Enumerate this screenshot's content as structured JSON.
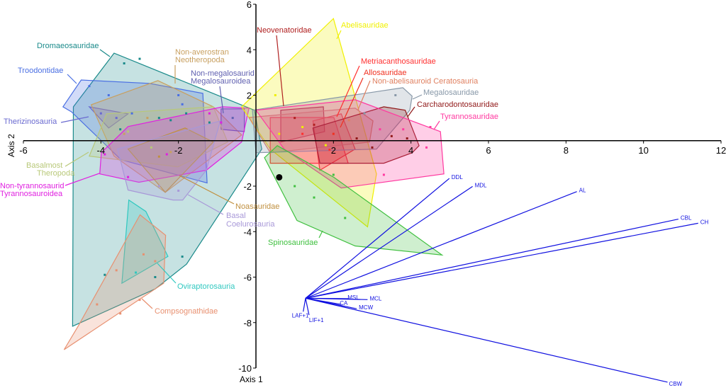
{
  "chart_data": {
    "type": "scatter",
    "xlabel": "Axis 1",
    "ylabel": "Axis 2",
    "xlim": [
      -6,
      12
    ],
    "ylim": [
      -10,
      6
    ],
    "xticks": [
      -6,
      -4,
      -2,
      2,
      4,
      6,
      8,
      10,
      12
    ],
    "yticks": [
      6,
      4,
      2,
      -2,
      -4,
      -6,
      -8,
      -10
    ],
    "grid": false,
    "legend": "none (direct labels)",
    "groups": [
      {
        "name": "Dromaeosauridae",
        "color": "#1a8a8a",
        "hull": [
          [
            -4.71,
            1.49
          ],
          [
            -3.66,
            3.85
          ],
          [
            -0.04,
            1.34
          ],
          [
            0.15,
            -0.37
          ],
          [
            -1.79,
            -5.43
          ],
          [
            -2.6,
            -6.52
          ],
          [
            -4.73,
            -8.16
          ]
        ],
        "points": [
          [
            -3.4,
            3.4
          ],
          [
            -3.0,
            3.6
          ],
          [
            -2.5,
            1.0
          ],
          [
            -1.8,
            1.2
          ],
          [
            -1.2,
            0.8
          ],
          [
            -3.5,
            0.5
          ],
          [
            -2.2,
            0.9
          ],
          [
            -2.6,
            -6.0
          ],
          [
            -3.9,
            -5.9
          ],
          [
            -1.9,
            -5.1
          ]
        ]
      },
      {
        "name": "Troodontidae",
        "color": "#4a6fe3",
        "hull": [
          [
            -4.98,
            1.49
          ],
          [
            -4.51,
            2.67
          ],
          [
            -2.75,
            2.52
          ],
          [
            -1.37,
            2.08
          ],
          [
            -1.26,
            -1.86
          ],
          [
            -3.48,
            -0.84
          ],
          [
            -4.76,
            1.27
          ]
        ],
        "points": [
          [
            -4.3,
            2.4
          ],
          [
            -3.8,
            2.0
          ],
          [
            -2.0,
            2.0
          ],
          [
            -1.9,
            1.6
          ],
          [
            -3.2,
            1.2
          ]
        ]
      },
      {
        "name": "Therizinosauria",
        "color": "#6a6ad0",
        "hull": [
          [
            -4.3,
            1.49
          ],
          [
            -3.3,
            1.18
          ],
          [
            -3.8,
            0.56
          ]
        ],
        "points": [
          [
            -4.0,
            1.2
          ],
          [
            -3.6,
            1.0
          ]
        ]
      },
      {
        "name": "Non-averostran Neotheropoda",
        "color": "#c8a060",
        "hull": [
          [
            -4.25,
            1.58
          ],
          [
            -2.53,
            2.64
          ],
          [
            -1.1,
            1.49
          ],
          [
            -0.37,
            0.25
          ],
          [
            -2.34,
            -2.27
          ],
          [
            -3.66,
            -0.68
          ]
        ],
        "points": [
          [
            -2.8,
            1.0
          ],
          [
            -3.4,
            0.3
          ],
          [
            -2.2,
            -0.5
          ]
        ]
      },
      {
        "name": "Non-megalosaurid Megalosauroidea",
        "color": "#6060b0",
        "hull": [
          [
            -0.9,
            1.4
          ],
          [
            -0.3,
            1.4
          ],
          [
            -0.3,
            0.4
          ],
          [
            -0.9,
            0.5
          ]
        ],
        "points": [
          [
            -0.6,
            1.0
          ]
        ]
      },
      {
        "name": "Basalmost Theropoda",
        "color": "#b8c878",
        "hull": [
          [
            -4.3,
            -0.68
          ],
          [
            -3.85,
            1.18
          ],
          [
            -1.1,
            1.49
          ],
          [
            -0.73,
            -0.06
          ],
          [
            -2.01,
            -1.15
          ]
        ],
        "points": [
          [
            -3.3,
            0.4
          ],
          [
            -2.7,
            -0.3
          ]
        ]
      },
      {
        "name": "Non-tyrannosaurid Tyrannosauroidea",
        "color": "#e020e0",
        "hull": [
          [
            -4.03,
            -1.46
          ],
          [
            -3.99,
            -0.53
          ],
          [
            -3.3,
            0.62
          ],
          [
            -0.86,
            1.49
          ],
          [
            -0.18,
            1.43
          ],
          [
            -0.37,
            -0.06
          ],
          [
            -1.28,
            -1.3
          ],
          [
            -3.02,
            -1.83
          ]
        ],
        "points": [
          [
            -3.9,
            -0.6
          ],
          [
            -3.3,
            -1.6
          ],
          [
            -2.3,
            -0.6
          ],
          [
            -1.2,
            1.2
          ],
          [
            -0.9,
            0.8
          ]
        ]
      },
      {
        "name": "Noasauridae",
        "color": "#c09040",
        "hull": [
          [
            -3.3,
            -0.37
          ],
          [
            -2.34,
            -2.27
          ],
          [
            -1.1,
            -0.06
          ],
          [
            -1.83,
            0.56
          ]
        ],
        "points": [
          [
            -2.5,
            -0.7
          ]
        ]
      },
      {
        "name": "Basal Coelurosauria",
        "color": "#a898d8",
        "hull": [
          [
            -3.3,
            -2.17
          ],
          [
            -2.14,
            -2.61
          ],
          [
            -1.89,
            -2.61
          ],
          [
            -1.28,
            -1.3
          ],
          [
            -0.92,
            0.87
          ],
          [
            -3.57,
            -0.37
          ]
        ],
        "points": [
          [
            -2.5,
            -2.0
          ],
          [
            -2.0,
            -2.2
          ]
        ]
      },
      {
        "name": "Oviraptorosauria",
        "color": "#30c8c0",
        "hull": [
          [
            -3.28,
            -2.61
          ],
          [
            -2.84,
            -3.11
          ],
          [
            -2.27,
            -5.09
          ],
          [
            -3.46,
            -6.27
          ]
        ],
        "points": [
          [
            -3.1,
            -5.8
          ]
        ]
      },
      {
        "name": "Compsognathidae",
        "color": "#e89070",
        "hull": [
          [
            -2.99,
            -3.26
          ],
          [
            -2.33,
            -4.16
          ],
          [
            -2.38,
            -6.27
          ],
          [
            -4.95,
            -9.19
          ],
          [
            -4.58,
            -8.14
          ]
        ],
        "points": [
          [
            -2.9,
            -5.0
          ],
          [
            -2.6,
            -5.3
          ],
          [
            -3.6,
            -5.7
          ],
          [
            -4.1,
            -7.2
          ],
          [
            -3.5,
            -7.6
          ],
          [
            -3.0,
            -7.0
          ]
        ]
      },
      {
        "name": "Abelisauridae",
        "color": "#f0f000",
        "hull": [
          [
            -0.37,
            1.49
          ],
          [
            2.0,
            5.37
          ],
          [
            3.11,
            -1.46
          ],
          [
            2.88,
            -3.79
          ],
          [
            0.37,
            -0.37
          ]
        ],
        "points": [
          [
            0.5,
            2.0
          ],
          [
            1.2,
            0.6
          ],
          [
            0.6,
            0.3
          ],
          [
            1.8,
            -0.2
          ]
        ]
      },
      {
        "name": "Neovenatoridae",
        "color": "#b02020",
        "hull": [
          [
            0.64,
            1.34
          ],
          [
            1.74,
            1.49
          ],
          [
            1.77,
            0.4
          ],
          [
            0.64,
            -0.06
          ]
        ],
        "points": [
          [
            1.0,
            1.0
          ],
          [
            1.5,
            0.7
          ]
        ]
      },
      {
        "name": "Metriacanthosauridae",
        "color": "#ff3030",
        "hull": [
          [
            0.37,
            1.02
          ],
          [
            2.01,
            1.02
          ],
          [
            2.38,
            -0.99
          ],
          [
            0.37,
            -0.99
          ]
        ],
        "points": [
          [
            1.2,
            0.3
          ],
          [
            1.9,
            -0.4
          ]
        ]
      },
      {
        "name": "Allosauridae",
        "color": "#f03020",
        "hull": [
          [
            1.47,
            0.87
          ],
          [
            2.2,
            1.18
          ],
          [
            2.56,
            -0.37
          ],
          [
            1.65,
            -1.3
          ]
        ],
        "points": [
          [
            2.0,
            0.3
          ]
        ]
      },
      {
        "name": "Non-abelisauroid Ceratosauria",
        "color": "#e08060",
        "hull": [
          [
            -0.18,
            1.02
          ],
          [
            2.56,
            1.43
          ],
          [
            3.02,
            0.87
          ],
          [
            2.93,
            -0.06
          ],
          [
            0.37,
            -0.53
          ]
        ],
        "points": [
          [
            2.4,
            0.9
          ]
        ]
      },
      {
        "name": "Megalosauridae",
        "color": "#8898a8",
        "hull": [
          [
            -0.09,
            1.34
          ],
          [
            3.79,
            2.33
          ],
          [
            4.03,
            1.96
          ],
          [
            3.97,
            1.34
          ],
          [
            3.11,
            -0.37
          ],
          [
            0.0,
            -0.53
          ]
        ],
        "points": [
          [
            3.6,
            2.0
          ],
          [
            2.8,
            1.2
          ]
        ]
      },
      {
        "name": "Carcharodontosauridae",
        "color": "#901818",
        "hull": [
          [
            1.47,
            0.56
          ],
          [
            3.3,
            1.49
          ],
          [
            3.85,
            1.34
          ],
          [
            4.21,
            -0.22
          ],
          [
            4.03,
            -0.53
          ],
          [
            3.3,
            -0.99
          ],
          [
            1.65,
            -0.99
          ]
        ],
        "points": [
          [
            3.5,
            0.2
          ],
          [
            3.0,
            -0.3
          ],
          [
            2.6,
            0.1
          ],
          [
            3.9,
            0.1
          ]
        ]
      },
      {
        "name": "Tyrannosauridae",
        "color": "#ff3aa0",
        "hull": [
          [
            0.0,
            1.34
          ],
          [
            2.56,
            1.8
          ],
          [
            4.76,
            0.4
          ],
          [
            4.85,
            -1.46
          ],
          [
            2.2,
            -2.08
          ],
          [
            0.73,
            -0.37
          ]
        ],
        "points": [
          [
            3.2,
            0.5
          ],
          [
            3.8,
            0.5
          ],
          [
            4.4,
            -0.3
          ],
          [
            4.5,
            0.6
          ],
          [
            3.3,
            -1.5
          ]
        ]
      },
      {
        "name": "Spinosauridae",
        "color": "#40c040",
        "hull": [
          [
            0.22,
            -0.75
          ],
          [
            0.55,
            -0.22
          ],
          [
            2.01,
            -1.61
          ],
          [
            4.8,
            -5.03
          ],
          [
            2.56,
            -4.63
          ],
          [
            1.06,
            -3.51
          ]
        ],
        "points": [
          [
            1.0,
            -2.0
          ],
          [
            1.5,
            -2.5
          ],
          [
            2.3,
            -3.4
          ],
          [
            2.0,
            -1.5
          ]
        ]
      }
    ],
    "highlight_point": {
      "x": 0.6,
      "y": -1.61,
      "color": "#000000"
    },
    "loadings": {
      "origin": [
        1.28,
        -6.93
      ],
      "color": "#1010e0",
      "vectors": [
        {
          "name": "DDL",
          "end": [
            4.99,
            -1.66
          ]
        },
        {
          "name": "MDL",
          "end": [
            5.59,
            -2.01
          ]
        },
        {
          "name": "AL",
          "end": [
            8.28,
            -2.24
          ]
        },
        {
          "name": "CBL",
          "end": [
            10.9,
            -3.45
          ]
        },
        {
          "name": "CH",
          "end": [
            11.41,
            -3.63
          ]
        },
        {
          "name": "MCL",
          "end": [
            2.88,
            -6.99
          ]
        },
        {
          "name": "MSL",
          "end": [
            2.4,
            -6.95
          ]
        },
        {
          "name": "CA",
          "end": [
            2.2,
            -7.2
          ]
        },
        {
          "name": "MCW",
          "end": [
            2.6,
            -7.39
          ]
        },
        {
          "name": "LAF+1",
          "end": [
            1.22,
            -7.52
          ]
        },
        {
          "name": "LIF+1",
          "end": [
            1.37,
            -7.67
          ]
        },
        {
          "name": "CBW",
          "end": [
            10.62,
            -10.62
          ]
        }
      ]
    }
  }
}
